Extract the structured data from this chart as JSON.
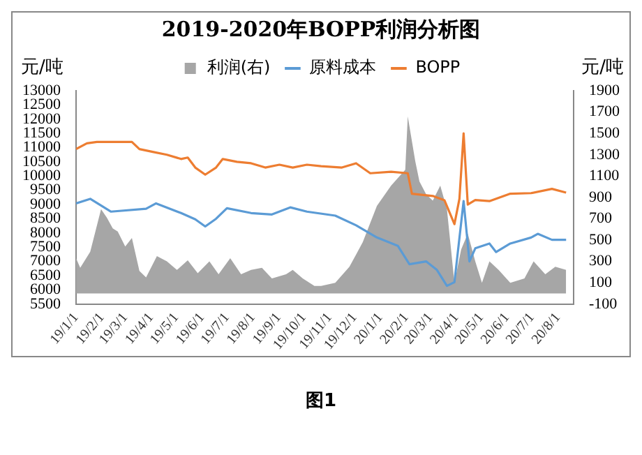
{
  "chart_data": {
    "type": "line",
    "title": "2019-2020年BOPP利润分析图",
    "ylabel": "元/吨",
    "y2label": "元/吨",
    "annotations": [
      "图1"
    ],
    "legend": "top",
    "grid": false,
    "marker": "none",
    "line_style": "solid",
    "ylim": [
      5500,
      13000
    ],
    "yticks": [
      5500,
      6000,
      6500,
      7000,
      7500,
      8000,
      8500,
      9000,
      9500,
      10000,
      10500,
      11000,
      11500,
      12000,
      12500,
      13000
    ],
    "y2lim": [
      -100,
      1900
    ],
    "y2ticks": [
      -100,
      100,
      300,
      500,
      700,
      900,
      1100,
      1300,
      1500,
      1700,
      1900
    ],
    "xlim": [
      "2019-01-01",
      "2020-08-20"
    ],
    "xticks": [
      {
        "value": "2019-01-01",
        "label": "19/1/1"
      },
      {
        "value": "2019-02-01",
        "label": "19/2/1"
      },
      {
        "value": "2019-03-01",
        "label": "19/3/1"
      },
      {
        "value": "2019-04-01",
        "label": "19/4/1"
      },
      {
        "value": "2019-05-01",
        "label": "19/5/1"
      },
      {
        "value": "2019-06-01",
        "label": "19/6/1"
      },
      {
        "value": "2019-07-01",
        "label": "19/7/1"
      },
      {
        "value": "2019-08-01",
        "label": "19/8/1"
      },
      {
        "value": "2019-09-01",
        "label": "19/9/1"
      },
      {
        "value": "2019-10-01",
        "label": "19/10/1"
      },
      {
        "value": "2019-11-01",
        "label": "19/11/1"
      },
      {
        "value": "2019-12-01",
        "label": "19/12/1"
      },
      {
        "value": "2020-01-01",
        "label": "20/1/1"
      },
      {
        "value": "2020-02-01",
        "label": "20/2/1"
      },
      {
        "value": "2020-03-01",
        "label": "20/3/1"
      },
      {
        "value": "2020-04-01",
        "label": "20/4/1"
      },
      {
        "value": "2020-05-01",
        "label": "20/5/1"
      },
      {
        "value": "2020-06-01",
        "label": "20/6/1"
      },
      {
        "value": "2020-07-01",
        "label": "20/7/1"
      },
      {
        "value": "2020-08-01",
        "label": "20/8/1"
      }
    ],
    "series": [
      {
        "name": "利润(右)",
        "type": "area",
        "axis": "y2",
        "color": "#a6a6a6",
        "x": [
          "2019-01-01",
          "2019-01-06",
          "2019-01-18",
          "2019-01-31",
          "2019-02-07",
          "2019-02-14",
          "2019-02-20",
          "2019-03-01",
          "2019-03-09",
          "2019-03-18",
          "2019-03-26",
          "2019-04-08",
          "2019-04-20",
          "2019-05-02",
          "2019-05-15",
          "2019-05-27",
          "2019-06-10",
          "2019-06-21",
          "2019-07-05",
          "2019-07-18",
          "2019-07-30",
          "2019-08-12",
          "2019-08-24",
          "2019-09-10",
          "2019-09-18",
          "2019-09-30",
          "2019-10-14",
          "2019-10-22",
          "2019-11-08",
          "2019-11-25",
          "2019-12-11",
          "2019-12-28",
          "2020-01-14",
          "2020-01-31",
          "2020-02-03",
          "2020-02-12",
          "2020-02-17",
          "2020-02-25",
          "2020-03-04",
          "2020-03-13",
          "2020-03-21",
          "2020-03-30",
          "2020-04-07",
          "2020-04-15",
          "2020-04-24",
          "2020-05-02",
          "2020-05-11",
          "2020-05-22",
          "2020-06-05",
          "2020-06-22",
          "2020-07-03",
          "2020-07-17",
          "2020-07-29",
          "2020-08-11"
        ],
        "values": [
          330,
          240,
          390,
          790,
          710,
          610,
          580,
          440,
          520,
          210,
          150,
          350,
          300,
          220,
          310,
          190,
          300,
          180,
          330,
          180,
          220,
          240,
          140,
          180,
          220,
          140,
          70,
          70,
          100,
          250,
          480,
          820,
          1010,
          1160,
          1660,
          1240,
          1050,
          930,
          870,
          1010,
          790,
          100,
          410,
          560,
          300,
          100,
          300,
          220,
          100,
          140,
          300,
          180,
          250,
          220
        ]
      },
      {
        "name": "原料成本",
        "type": "line",
        "color": "#5b9bd5",
        "x": [
          "2019-01-01",
          "2019-01-18",
          "2019-02-12",
          "2019-03-26",
          "2019-04-07",
          "2019-05-07",
          "2019-05-24",
          "2019-06-05",
          "2019-06-18",
          "2019-07-01",
          "2019-07-30",
          "2019-08-24",
          "2019-09-15",
          "2019-10-05",
          "2019-11-08",
          "2019-12-03",
          "2019-12-28",
          "2020-01-22",
          "2020-02-05",
          "2020-02-25",
          "2020-03-09",
          "2020-03-21",
          "2020-03-30",
          "2020-04-10",
          "2020-04-17",
          "2020-04-24",
          "2020-05-11",
          "2020-05-19",
          "2020-06-05",
          "2020-06-30",
          "2020-07-08",
          "2020-07-25",
          "2020-08-11"
        ],
        "values": [
          9040,
          9200,
          8750,
          8850,
          9040,
          8700,
          8480,
          8230,
          8500,
          8870,
          8700,
          8650,
          8900,
          8750,
          8610,
          8270,
          7840,
          7550,
          6900,
          7000,
          6700,
          6140,
          6270,
          9120,
          7000,
          7460,
          7630,
          7330,
          7630,
          7840,
          7970,
          7760,
          7760
        ]
      },
      {
        "name": "BOPP",
        "type": "line",
        "color": "#ed7d31",
        "x": [
          "2019-01-01",
          "2019-01-14",
          "2019-01-26",
          "2019-03-09",
          "2019-03-18",
          "2019-04-03",
          "2019-04-20",
          "2019-05-07",
          "2019-05-15",
          "2019-05-24",
          "2019-06-05",
          "2019-06-18",
          "2019-06-26",
          "2019-07-13",
          "2019-07-30",
          "2019-08-16",
          "2019-09-02",
          "2019-09-18",
          "2019-10-05",
          "2019-10-22",
          "2019-11-16",
          "2019-12-03",
          "2019-12-20",
          "2020-01-14",
          "2020-02-03",
          "2020-02-08",
          "2020-03-04",
          "2020-03-18",
          "2020-03-30",
          "2020-04-05",
          "2020-04-10",
          "2020-04-15",
          "2020-04-24",
          "2020-05-11",
          "2020-06-05",
          "2020-06-30",
          "2020-07-25",
          "2020-08-11"
        ],
        "values": [
          10950,
          11150,
          11200,
          11200,
          10950,
          10850,
          10750,
          10600,
          10650,
          10300,
          10050,
          10300,
          10600,
          10500,
          10450,
          10300,
          10400,
          10300,
          10400,
          10350,
          10300,
          10450,
          10100,
          10150,
          10100,
          9380,
          9300,
          9150,
          8310,
          9200,
          11500,
          9000,
          9160,
          9120,
          9380,
          9400,
          9550,
          9420
        ]
      }
    ]
  }
}
